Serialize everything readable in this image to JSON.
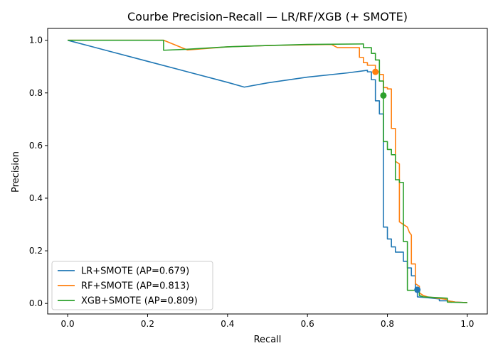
{
  "chart_data": {
    "type": "line",
    "title": "Courbe Precision–Recall — LR/RF/XGB (+ SMOTE)",
    "xlabel": "Recall",
    "ylabel": "Precision",
    "xlim": [
      -0.05,
      1.05
    ],
    "ylim": [
      -0.04,
      1.045
    ],
    "xticks": [
      0.0,
      0.2,
      0.4,
      0.6,
      0.8,
      1.0
    ],
    "xtick_labels": [
      "0.0",
      "0.2",
      "0.4",
      "0.6",
      "0.8",
      "1.0"
    ],
    "yticks": [
      0.0,
      0.2,
      0.4,
      0.6,
      0.8,
      1.0
    ],
    "ytick_labels": [
      "0.0",
      "0.2",
      "0.4",
      "0.6",
      "0.8",
      "1.0"
    ],
    "grid": false,
    "legend_position": "lower-left",
    "series": [
      {
        "name": "LR+SMOTE (AP=0.679)",
        "color": "#1f77b4",
        "points": [
          [
            0.0,
            1.0
          ],
          [
            0.1,
            0.96
          ],
          [
            0.2,
            0.92
          ],
          [
            0.3,
            0.88
          ],
          [
            0.4,
            0.84
          ],
          [
            0.442,
            0.822
          ],
          [
            0.5,
            0.838
          ],
          [
            0.6,
            0.86
          ],
          [
            0.7,
            0.876
          ],
          [
            0.75,
            0.886
          ],
          [
            0.75,
            0.88
          ],
          [
            0.76,
            0.88
          ],
          [
            0.76,
            0.85
          ],
          [
            0.77,
            0.85
          ],
          [
            0.77,
            0.77
          ],
          [
            0.78,
            0.77
          ],
          [
            0.78,
            0.72
          ],
          [
            0.79,
            0.72
          ],
          [
            0.79,
            0.29
          ],
          [
            0.8,
            0.29
          ],
          [
            0.8,
            0.245
          ],
          [
            0.81,
            0.245
          ],
          [
            0.81,
            0.215
          ],
          [
            0.82,
            0.215
          ],
          [
            0.82,
            0.195
          ],
          [
            0.84,
            0.195
          ],
          [
            0.84,
            0.16
          ],
          [
            0.85,
            0.16
          ],
          [
            0.85,
            0.135
          ],
          [
            0.86,
            0.135
          ],
          [
            0.86,
            0.105
          ],
          [
            0.87,
            0.105
          ],
          [
            0.87,
            0.055
          ],
          [
            0.875,
            0.055
          ],
          [
            0.875,
            0.025
          ],
          [
            0.9,
            0.022
          ],
          [
            0.93,
            0.017
          ],
          [
            0.93,
            0.01
          ],
          [
            0.95,
            0.01
          ],
          [
            0.97,
            0.005
          ],
          [
            1.0,
            0.003
          ]
        ]
      },
      {
        "name": "RF+SMOTE (AP=0.813)",
        "color": "#ff7f0e",
        "points": [
          [
            0.0,
            1.0
          ],
          [
            0.24,
            1.0
          ],
          [
            0.3,
            0.963
          ],
          [
            0.4,
            0.975
          ],
          [
            0.5,
            0.98
          ],
          [
            0.66,
            0.984
          ],
          [
            0.675,
            0.972
          ],
          [
            0.73,
            0.972
          ],
          [
            0.73,
            0.935
          ],
          [
            0.74,
            0.935
          ],
          [
            0.74,
            0.915
          ],
          [
            0.75,
            0.915
          ],
          [
            0.75,
            0.905
          ],
          [
            0.77,
            0.905
          ],
          [
            0.77,
            0.88
          ],
          [
            0.78,
            0.88
          ],
          [
            0.78,
            0.87
          ],
          [
            0.79,
            0.87
          ],
          [
            0.79,
            0.82
          ],
          [
            0.8,
            0.82
          ],
          [
            0.8,
            0.815
          ],
          [
            0.81,
            0.815
          ],
          [
            0.81,
            0.665
          ],
          [
            0.82,
            0.665
          ],
          [
            0.82,
            0.54
          ],
          [
            0.83,
            0.53
          ],
          [
            0.83,
            0.31
          ],
          [
            0.84,
            0.3
          ],
          [
            0.85,
            0.29
          ],
          [
            0.855,
            0.27
          ],
          [
            0.86,
            0.26
          ],
          [
            0.86,
            0.15
          ],
          [
            0.87,
            0.15
          ],
          [
            0.87,
            0.075
          ],
          [
            0.88,
            0.065
          ],
          [
            0.88,
            0.04
          ],
          [
            0.89,
            0.03
          ],
          [
            0.9,
            0.025
          ],
          [
            0.95,
            0.015
          ],
          [
            0.95,
            0.01
          ],
          [
            0.97,
            0.005
          ],
          [
            1.0,
            0.003
          ]
        ]
      },
      {
        "name": "XGB+SMOTE (AP=0.809)",
        "color": "#2ca02c",
        "points": [
          [
            0.0,
            1.0
          ],
          [
            0.24,
            1.0
          ],
          [
            0.24,
            0.962
          ],
          [
            0.3,
            0.966
          ],
          [
            0.4,
            0.975
          ],
          [
            0.5,
            0.98
          ],
          [
            0.6,
            0.984
          ],
          [
            0.74,
            0.986
          ],
          [
            0.74,
            0.972
          ],
          [
            0.76,
            0.972
          ],
          [
            0.76,
            0.95
          ],
          [
            0.77,
            0.95
          ],
          [
            0.77,
            0.925
          ],
          [
            0.78,
            0.925
          ],
          [
            0.78,
            0.845
          ],
          [
            0.79,
            0.845
          ],
          [
            0.79,
            0.615
          ],
          [
            0.8,
            0.615
          ],
          [
            0.8,
            0.585
          ],
          [
            0.81,
            0.585
          ],
          [
            0.81,
            0.565
          ],
          [
            0.82,
            0.565
          ],
          [
            0.82,
            0.47
          ],
          [
            0.83,
            0.47
          ],
          [
            0.83,
            0.46
          ],
          [
            0.84,
            0.46
          ],
          [
            0.84,
            0.235
          ],
          [
            0.85,
            0.235
          ],
          [
            0.85,
            0.05
          ],
          [
            0.87,
            0.05
          ],
          [
            0.87,
            0.045
          ],
          [
            0.88,
            0.045
          ],
          [
            0.88,
            0.03
          ],
          [
            0.89,
            0.025
          ],
          [
            0.95,
            0.02
          ],
          [
            0.95,
            0.005
          ],
          [
            1.0,
            0.003
          ]
        ]
      }
    ],
    "markers": [
      {
        "series": "LR+SMOTE (AP=0.679)",
        "color": "#1f77b4",
        "x": 0.875,
        "y": 0.052
      },
      {
        "series": "RF+SMOTE (AP=0.813)",
        "color": "#ff7f0e",
        "x": 0.77,
        "y": 0.88
      },
      {
        "series": "XGB+SMOTE (AP=0.809)",
        "color": "#2ca02c",
        "x": 0.79,
        "y": 0.79
      }
    ]
  }
}
